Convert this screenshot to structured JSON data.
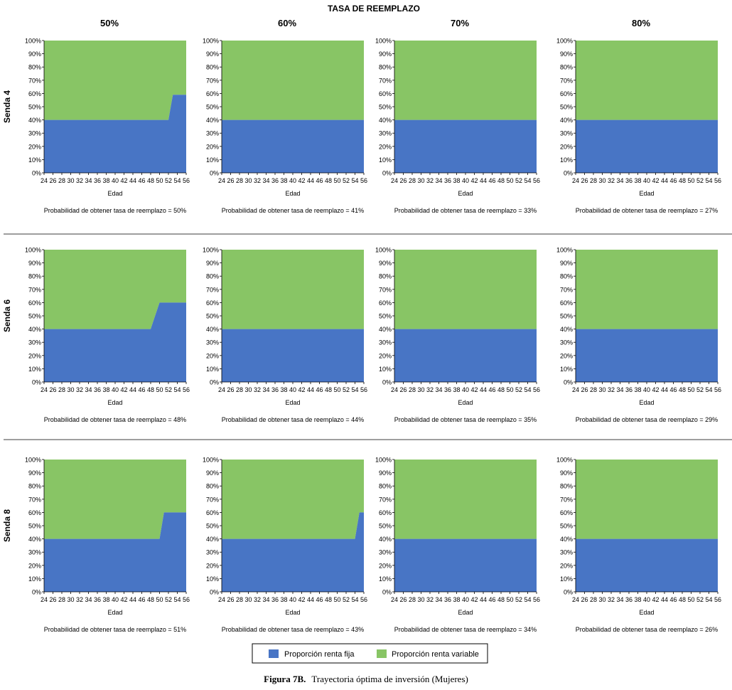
{
  "super_title": "TASA DE REEMPLAZO",
  "column_headers": [
    "50%",
    "60%",
    "70%",
    "80%"
  ],
  "row_headers": [
    "Senda 4",
    "Senda 6",
    "Senda 8"
  ],
  "legend": {
    "fixed_label": "Proporción renta fija",
    "variable_label": "Proporción renta variable"
  },
  "colors": {
    "fixed": "#4875c5",
    "variable": "#88c565",
    "separator": "#7f7f7f"
  },
  "caption": {
    "label": "Figura 7B.",
    "text": "Trayectoria óptima de inversión (Mujeres)"
  },
  "chart_data": [
    {
      "type": "area",
      "row": "Senda 4",
      "col": "50%",
      "xlabel": "Edad",
      "subtitle": "Probabilidad de obtener tasa de reemplazo = 50%",
      "x": [
        24,
        52,
        53,
        56
      ],
      "series": [
        {
          "name": "Proporción renta fija",
          "values": [
            40,
            40,
            59,
            59
          ]
        },
        {
          "name": "Proporción renta variable",
          "values": [
            60,
            60,
            41,
            41
          ]
        }
      ],
      "xlim": [
        24,
        56
      ],
      "ylim": [
        0,
        100
      ]
    },
    {
      "type": "area",
      "row": "Senda 4",
      "col": "60%",
      "xlabel": "Edad",
      "subtitle": "Probabilidad de obtener tasa de reemplazo = 41%",
      "x": [
        24,
        56
      ],
      "series": [
        {
          "name": "Proporción renta fija",
          "values": [
            40,
            40
          ]
        },
        {
          "name": "Proporción renta variable",
          "values": [
            60,
            60
          ]
        }
      ],
      "xlim": [
        24,
        56
      ],
      "ylim": [
        0,
        100
      ]
    },
    {
      "type": "area",
      "row": "Senda 4",
      "col": "70%",
      "xlabel": "Edad",
      "subtitle": "Probabilidad de obtener tasa de reemplazo = 33%",
      "x": [
        24,
        56
      ],
      "series": [
        {
          "name": "Proporción renta fija",
          "values": [
            40,
            40
          ]
        },
        {
          "name": "Proporción renta variable",
          "values": [
            60,
            60
          ]
        }
      ],
      "xlim": [
        24,
        56
      ],
      "ylim": [
        0,
        100
      ]
    },
    {
      "type": "area",
      "row": "Senda 4",
      "col": "80%",
      "xlabel": "Edad",
      "subtitle": "Probabilidad de obtener tasa de reemplazo = 27%",
      "x": [
        24,
        56
      ],
      "series": [
        {
          "name": "Proporción renta fija",
          "values": [
            40,
            40
          ]
        },
        {
          "name": "Proporción renta variable",
          "values": [
            60,
            60
          ]
        }
      ],
      "xlim": [
        24,
        56
      ],
      "ylim": [
        0,
        100
      ]
    },
    {
      "type": "area",
      "row": "Senda 6",
      "col": "50%",
      "xlabel": "Edad",
      "subtitle": "Probabilidad de obtener tasa de reemplazo = 48%",
      "x": [
        24,
        48,
        50,
        56
      ],
      "series": [
        {
          "name": "Proporción renta fija",
          "values": [
            40,
            40,
            60,
            60
          ]
        },
        {
          "name": "Proporción renta variable",
          "values": [
            60,
            60,
            40,
            40
          ]
        }
      ],
      "xlim": [
        24,
        56
      ],
      "ylim": [
        0,
        100
      ]
    },
    {
      "type": "area",
      "row": "Senda 6",
      "col": "60%",
      "xlabel": "Edad",
      "subtitle": "Probabilidad de obtener tasa de reemplazo = 44%",
      "x": [
        24,
        56
      ],
      "series": [
        {
          "name": "Proporción renta fija",
          "values": [
            40,
            40
          ]
        },
        {
          "name": "Proporción renta variable",
          "values": [
            60,
            60
          ]
        }
      ],
      "xlim": [
        24,
        56
      ],
      "ylim": [
        0,
        100
      ]
    },
    {
      "type": "area",
      "row": "Senda 6",
      "col": "70%",
      "xlabel": "Edad",
      "subtitle": "Probabilidad de obtener tasa de reemplazo = 35%",
      "x": [
        24,
        56
      ],
      "series": [
        {
          "name": "Proporción renta fija",
          "values": [
            40,
            40
          ]
        },
        {
          "name": "Proporción renta variable",
          "values": [
            60,
            60
          ]
        }
      ],
      "xlim": [
        24,
        56
      ],
      "ylim": [
        0,
        100
      ]
    },
    {
      "type": "area",
      "row": "Senda 6",
      "col": "80%",
      "xlabel": "Edad",
      "subtitle": "Probabilidad de obtener tasa de reemplazo = 29%",
      "x": [
        24,
        56
      ],
      "series": [
        {
          "name": "Proporción renta fija",
          "values": [
            40,
            40
          ]
        },
        {
          "name": "Proporción renta variable",
          "values": [
            60,
            60
          ]
        }
      ],
      "xlim": [
        24,
        56
      ],
      "ylim": [
        0,
        100
      ]
    },
    {
      "type": "area",
      "row": "Senda 8",
      "col": "50%",
      "xlabel": "Edad",
      "subtitle": "Probabilidad de obtener tasa de reemplazo = 51%",
      "x": [
        24,
        50,
        51,
        56
      ],
      "series": [
        {
          "name": "Proporción renta fija",
          "values": [
            40,
            40,
            60,
            60
          ]
        },
        {
          "name": "Proporción renta variable",
          "values": [
            60,
            60,
            40,
            40
          ]
        }
      ],
      "xlim": [
        24,
        56
      ],
      "ylim": [
        0,
        100
      ]
    },
    {
      "type": "area",
      "row": "Senda 8",
      "col": "60%",
      "xlabel": "Edad",
      "subtitle": "Probabilidad de obtener tasa de reemplazo = 43%",
      "x": [
        24,
        54,
        55,
        56
      ],
      "series": [
        {
          "name": "Proporción renta fija",
          "values": [
            40,
            40,
            60,
            60
          ]
        },
        {
          "name": "Proporción renta variable",
          "values": [
            60,
            60,
            40,
            40
          ]
        }
      ],
      "xlim": [
        24,
        56
      ],
      "ylim": [
        0,
        100
      ]
    },
    {
      "type": "area",
      "row": "Senda 8",
      "col": "70%",
      "xlabel": "Edad",
      "subtitle": "Probabilidad de obtener tasa de reemplazo = 34%",
      "x": [
        24,
        56
      ],
      "series": [
        {
          "name": "Proporción renta fija",
          "values": [
            40,
            40
          ]
        },
        {
          "name": "Proporción renta variable",
          "values": [
            60,
            60
          ]
        }
      ],
      "xlim": [
        24,
        56
      ],
      "ylim": [
        0,
        100
      ]
    },
    {
      "type": "area",
      "row": "Senda 8",
      "col": "80%",
      "xlabel": "Edad",
      "subtitle": "Probabilidad de obtener tasa de reemplazo = 26%",
      "x": [
        24,
        56
      ],
      "series": [
        {
          "name": "Proporción renta fija",
          "values": [
            40,
            40
          ]
        },
        {
          "name": "Proporción renta variable",
          "values": [
            60,
            60
          ]
        }
      ],
      "xlim": [
        24,
        56
      ],
      "ylim": [
        0,
        100
      ]
    }
  ]
}
